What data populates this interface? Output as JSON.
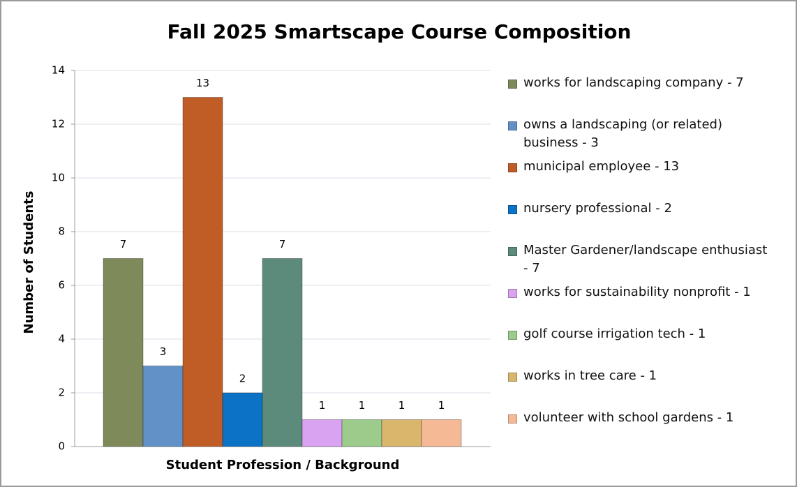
{
  "chart_data": {
    "type": "bar",
    "title": "Fall 2025 Smartscape Course Composition",
    "x_label": "Student Profession / Background",
    "y_label": "Number of Students",
    "categories": [
      null
    ],
    "series": [
      {
        "name": "works for landscaping company - 7",
        "color": "#7f8a5a",
        "values": [
          7
        ]
      },
      {
        "name": "owns a landscaping (or related) business - 3",
        "color": "#6191c6",
        "values": [
          3
        ]
      },
      {
        "name": "municipal employee - 13",
        "color": "#c05c26",
        "values": [
          13
        ]
      },
      {
        "name": "nursery professional - 2",
        "color": "#0c72c6",
        "values": [
          2
        ]
      },
      {
        "name": "Master Gardener/landscape enthusiast - 7",
        "color": "#5c8a7b",
        "values": [
          7
        ]
      },
      {
        "name": "works for sustainability nonprofit - 1",
        "color": "#d9a3f2",
        "values": [
          1
        ]
      },
      {
        "name": "golf course irrigation tech - 1",
        "color": "#9ccb8c",
        "values": [
          1
        ]
      },
      {
        "name": "works in tree care - 1",
        "color": "#d9b66c",
        "values": [
          1
        ]
      },
      {
        "name": "volunteer with school gardens - 1",
        "color": "#f5b996",
        "values": [
          1
        ]
      }
    ],
    "ylim": [
      0,
      14
    ],
    "yticks": [
      0,
      2,
      4,
      6,
      8,
      10,
      12,
      14
    ],
    "grid": true,
    "legend": "right"
  }
}
